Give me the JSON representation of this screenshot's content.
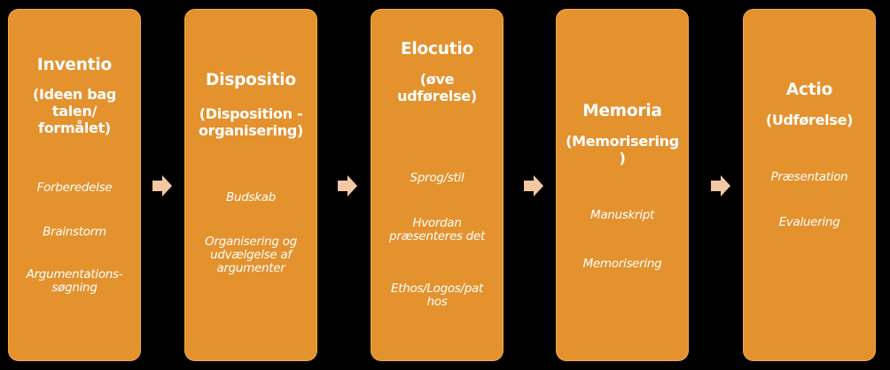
{
  "stages": [
    {
      "title": "Inventio",
      "subtitle_lines": [
        "(Ideen bag",
        "talen/",
        "formålet)"
      ],
      "items": [
        "Forberedelse",
        "Brainstorm",
        "Argumentations-\nsøgning"
      ]
    },
    {
      "title": "Dispositio",
      "subtitle_lines": [
        "(Disposition -",
        "organisering)"
      ],
      "items": [
        "Budskab",
        "Organisering og\nudvælgelse af\nargumenter"
      ]
    },
    {
      "title": "Elocutio",
      "subtitle_lines": [
        "(øve",
        "udførelse)"
      ],
      "items": [
        "Sprog/stil",
        "Hvordan\npræsenteres det",
        "Ethos/Logos/pat\nhos"
      ]
    },
    {
      "title": "Memoria",
      "subtitle_lines": [
        "(Memorisering",
        ")"
      ],
      "items": [
        "Manuskript",
        "Memorisering"
      ]
    },
    {
      "title": "Actio",
      "subtitle_lines": [
        "(Udførelse)"
      ],
      "items": [
        "Præsentation",
        "Evaluering"
      ]
    }
  ],
  "colors": {
    "box_fill": "#e3922e",
    "arrow_fill": "#f3c9a4",
    "background": "#000000",
    "text": "#ffffff"
  }
}
